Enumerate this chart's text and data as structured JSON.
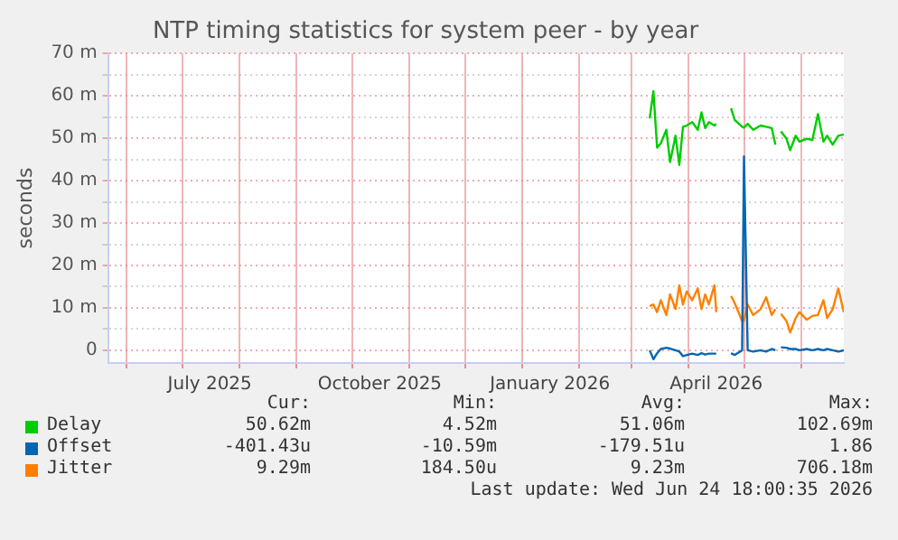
{
  "chart_data": {
    "type": "line",
    "title": "NTP timing statistics for system peer - by year",
    "ylabel": "seconds",
    "x": [
      "2026-03-11",
      "2026-03-13",
      "2026-03-15",
      "2026-03-17",
      "2026-03-20",
      "2026-03-22",
      "2026-03-25",
      "2026-03-27",
      "2026-03-29",
      "2026-03-31",
      "2026-04-03",
      "2026-04-06",
      "2026-04-08",
      "2026-04-10",
      "2026-04-12",
      "2026-04-15",
      "2026-04-16",
      "2026-04-20",
      "2026-04-24",
      "2026-04-26",
      "2026-04-30",
      "2026-05-01",
      "2026-05-03",
      "2026-05-06",
      "2026-05-10",
      "2026-05-13",
      "2026-05-16",
      "2026-05-18",
      "2026-05-20",
      "2026-05-21",
      "2026-05-24",
      "2026-05-26",
      "2026-05-29",
      "2026-05-31",
      "2026-06-04",
      "2026-06-07",
      "2026-06-10",
      "2026-06-13",
      "2026-06-15",
      "2026-06-18",
      "2026-06-21",
      "2026-06-24"
    ],
    "series": [
      {
        "name": "Delay",
        "color": "#00cc00",
        "values": [
          54.7,
          61.1,
          47.8,
          48.8,
          52,
          44.4,
          50.6,
          43.7,
          52.7,
          53,
          53.8,
          52,
          56.1,
          52.4,
          53.8,
          53,
          53.4,
          null,
          57.1,
          54.3,
          52.7,
          52.5,
          53.4,
          52,
          53,
          52.7,
          52.4,
          48.5,
          null,
          51.6,
          49.9,
          47.2,
          50.6,
          49.2,
          49.9,
          49.6,
          55.7,
          49.2,
          50.6,
          48.5,
          50.6,
          50.9
        ]
      },
      {
        "name": "Offset",
        "color": "#0066b3",
        "values": [
          0,
          -2.1,
          -0.7,
          0.3,
          0.6,
          0.4,
          0,
          -0.3,
          -1.4,
          -1.1,
          -0.8,
          -1.1,
          -0.7,
          -1,
          -0.8,
          -0.8,
          -0.8,
          null,
          -0.7,
          -1.1,
          0,
          45.7,
          0,
          -0.3,
          0,
          -0.3,
          0.3,
          0,
          null,
          0.7,
          0.6,
          0.3,
          0.3,
          0,
          0.3,
          0,
          0.3,
          0,
          0.3,
          0,
          -0.3,
          0
        ]
      },
      {
        "name": "Jitter",
        "color": "#ff8000",
        "values": [
          10.4,
          10.8,
          9,
          11.8,
          8.3,
          13.2,
          9.7,
          15.3,
          10.8,
          13.9,
          11.8,
          14.6,
          9.7,
          13.2,
          10.8,
          15.3,
          9,
          null,
          12.8,
          11.1,
          6.9,
          7,
          10.8,
          8.3,
          9.7,
          12.5,
          8.3,
          9.7,
          null,
          8.6,
          6.9,
          4.2,
          7.6,
          9,
          7.2,
          8.1,
          8.3,
          11.8,
          7.6,
          9.7,
          14.6,
          9
        ]
      }
    ],
    "xlim": [
      "2025-05-22",
      "2026-06-24"
    ],
    "xticks": [
      {
        "value": "2025-06-01",
        "label": null
      },
      {
        "value": "2025-07-01",
        "label": null
      },
      {
        "value": "2025-07-16",
        "label": "July 2025"
      },
      {
        "value": "2025-08-01",
        "label": null
      },
      {
        "value": "2025-09-01",
        "label": null
      },
      {
        "value": "2025-10-01",
        "label": null
      },
      {
        "value": "2025-10-16",
        "label": "October 2025"
      },
      {
        "value": "2025-11-01",
        "label": null
      },
      {
        "value": "2025-12-01",
        "label": null
      },
      {
        "value": "2026-01-01",
        "label": null
      },
      {
        "value": "2026-01-16",
        "label": "January 2026"
      },
      {
        "value": "2026-02-01",
        "label": null
      },
      {
        "value": "2026-03-01",
        "label": null
      },
      {
        "value": "2026-04-01",
        "label": null
      },
      {
        "value": "2026-04-16",
        "label": "April 2026"
      },
      {
        "value": "2026-05-01",
        "label": null
      },
      {
        "value": "2026-06-01",
        "label": null
      }
    ],
    "ylim": [
      -3,
      70
    ],
    "yticks": [
      0,
      {
        "value": 5,
        "label": null
      },
      {
        "value": 10,
        "label": "10 m"
      },
      {
        "value": 15,
        "label": null
      },
      {
        "value": 20,
        "label": "20 m"
      },
      {
        "value": 25,
        "label": null
      },
      {
        "value": 30,
        "label": "30 m"
      },
      {
        "value": 35,
        "label": null
      },
      {
        "value": 40,
        "label": "40 m"
      },
      {
        "value": 45,
        "label": null
      },
      {
        "value": 50,
        "label": "50 m"
      },
      {
        "value": 55,
        "label": null
      },
      {
        "value": 60,
        "label": "60 m"
      },
      {
        "value": 65,
        "label": null
      },
      {
        "value": 70,
        "label": "70 m"
      }
    ],
    "grid": true,
    "legend": "bottom",
    "marker": "none",
    "line_style": "solid",
    "annotations": [
      "Cur:",
      "Min:",
      "Avg:",
      "Max:",
      "50.62m",
      "4.52m",
      "51.06m",
      "102.69m",
      "-401.43u",
      "-10.59m",
      "-179.51u",
      "1.86",
      "9.29m",
      "184.50u",
      "9.23m",
      "706.18m",
      "Last update: Wed Jun 24 18:00:35 2026"
    ]
  }
}
